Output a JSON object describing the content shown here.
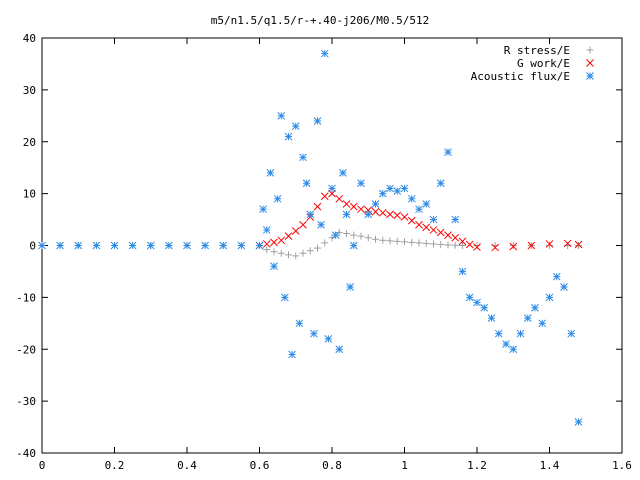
{
  "chart_data": {
    "type": "scatter",
    "title": "m5/n1.5/q1.5/r-+.40-j206/M0.5/512",
    "xlabel": "",
    "ylabel": "",
    "xlim": [
      0,
      1.6
    ],
    "ylim": [
      -40,
      40
    ],
    "x_ticks": [
      "0",
      "0.2",
      "0.4",
      "0.6",
      "0.8",
      "1",
      "1.2",
      "1.4",
      "1.6"
    ],
    "y_ticks": [
      "40",
      "30",
      "20",
      "10",
      "0",
      "-10",
      "-20",
      "-30",
      "-40"
    ],
    "x_tick_values": [
      0,
      0.2,
      0.4,
      0.6,
      0.8,
      1.0,
      1.2,
      1.4,
      1.6
    ],
    "y_tick_values": [
      40,
      30,
      20,
      10,
      0,
      -10,
      -20,
      -30,
      -40
    ],
    "grid": false,
    "legend_position": "top-right",
    "series": [
      {
        "name": "R stress/E",
        "marker": "plus",
        "color": "#a0a0a0",
        "x": [
          0.0,
          0.1,
          0.2,
          0.3,
          0.4,
          0.5,
          0.6,
          0.62,
          0.64,
          0.66,
          0.68,
          0.7,
          0.72,
          0.74,
          0.76,
          0.78,
          0.8,
          0.82,
          0.84,
          0.86,
          0.88,
          0.9,
          0.92,
          0.94,
          0.96,
          0.98,
          1.0,
          1.02,
          1.04,
          1.06,
          1.08,
          1.1,
          1.12,
          1.14,
          1.16,
          1.2,
          1.25,
          1.3,
          1.35,
          1.4,
          1.45,
          1.48
        ],
        "y": [
          0,
          0,
          0,
          0,
          0,
          0,
          0,
          -0.8,
          -1.2,
          -1.5,
          -1.8,
          -2.0,
          -1.5,
          -1.0,
          -0.5,
          0.5,
          1.5,
          2.5,
          2.3,
          2.0,
          1.8,
          1.5,
          1.2,
          1.0,
          0.9,
          0.8,
          0.7,
          0.6,
          0.5,
          0.4,
          0.3,
          0.2,
          0.1,
          0.05,
          0,
          0,
          0,
          0,
          0,
          0,
          0,
          0
        ]
      },
      {
        "name": "G work/E",
        "marker": "cross",
        "color": "#ff0000",
        "x": [
          0.6,
          0.62,
          0.64,
          0.66,
          0.68,
          0.7,
          0.72,
          0.74,
          0.76,
          0.78,
          0.8,
          0.82,
          0.84,
          0.86,
          0.88,
          0.9,
          0.92,
          0.94,
          0.96,
          0.98,
          1.0,
          1.02,
          1.04,
          1.06,
          1.08,
          1.1,
          1.12,
          1.14,
          1.16,
          1.18,
          1.2,
          1.25,
          1.3,
          1.35,
          1.4,
          1.45,
          1.48
        ],
        "y": [
          0,
          0.3,
          0.6,
          1.0,
          1.8,
          2.8,
          4.0,
          5.5,
          7.5,
          9.5,
          10.0,
          9.0,
          8.0,
          7.5,
          7.0,
          6.8,
          6.5,
          6.3,
          6.0,
          5.8,
          5.5,
          4.8,
          4.0,
          3.5,
          3.0,
          2.5,
          2.0,
          1.5,
          0.8,
          0.2,
          -0.3,
          -0.4,
          -0.2,
          0.0,
          0.3,
          0.4,
          0.2
        ]
      },
      {
        "name": "Acoustic flux/E",
        "marker": "star",
        "color": "#2a8ae6",
        "x": [
          0.0,
          0.05,
          0.1,
          0.15,
          0.2,
          0.25,
          0.3,
          0.35,
          0.4,
          0.45,
          0.5,
          0.55,
          0.6,
          0.61,
          0.62,
          0.63,
          0.64,
          0.65,
          0.66,
          0.67,
          0.68,
          0.69,
          0.7,
          0.71,
          0.72,
          0.73,
          0.74,
          0.75,
          0.76,
          0.77,
          0.78,
          0.79,
          0.8,
          0.81,
          0.82,
          0.83,
          0.84,
          0.85,
          0.86,
          0.88,
          0.9,
          0.92,
          0.94,
          0.96,
          0.98,
          1.0,
          1.02,
          1.04,
          1.06,
          1.08,
          1.1,
          1.12,
          1.14,
          1.16,
          1.18,
          1.2,
          1.22,
          1.24,
          1.26,
          1.28,
          1.3,
          1.32,
          1.34,
          1.36,
          1.38,
          1.4,
          1.42,
          1.44,
          1.46,
          1.48
        ],
        "y": [
          0,
          0,
          0,
          0,
          0,
          0,
          0,
          0,
          0,
          0,
          0,
          0,
          0,
          7,
          3,
          14,
          -4,
          9,
          25,
          -10,
          21,
          -21,
          23,
          -15,
          17,
          12,
          6,
          -17,
          24,
          4,
          37,
          -18,
          11,
          2,
          -20,
          14,
          6,
          -8,
          0,
          12,
          6,
          8,
          10,
          11,
          10.5,
          11,
          9,
          7,
          8,
          5,
          12,
          18,
          5,
          -5,
          -10,
          -11,
          -12,
          -14,
          -17,
          -19,
          -20,
          -17,
          -14,
          -12,
          -15,
          -10,
          -6,
          -8,
          -17,
          -34
        ]
      }
    ]
  }
}
